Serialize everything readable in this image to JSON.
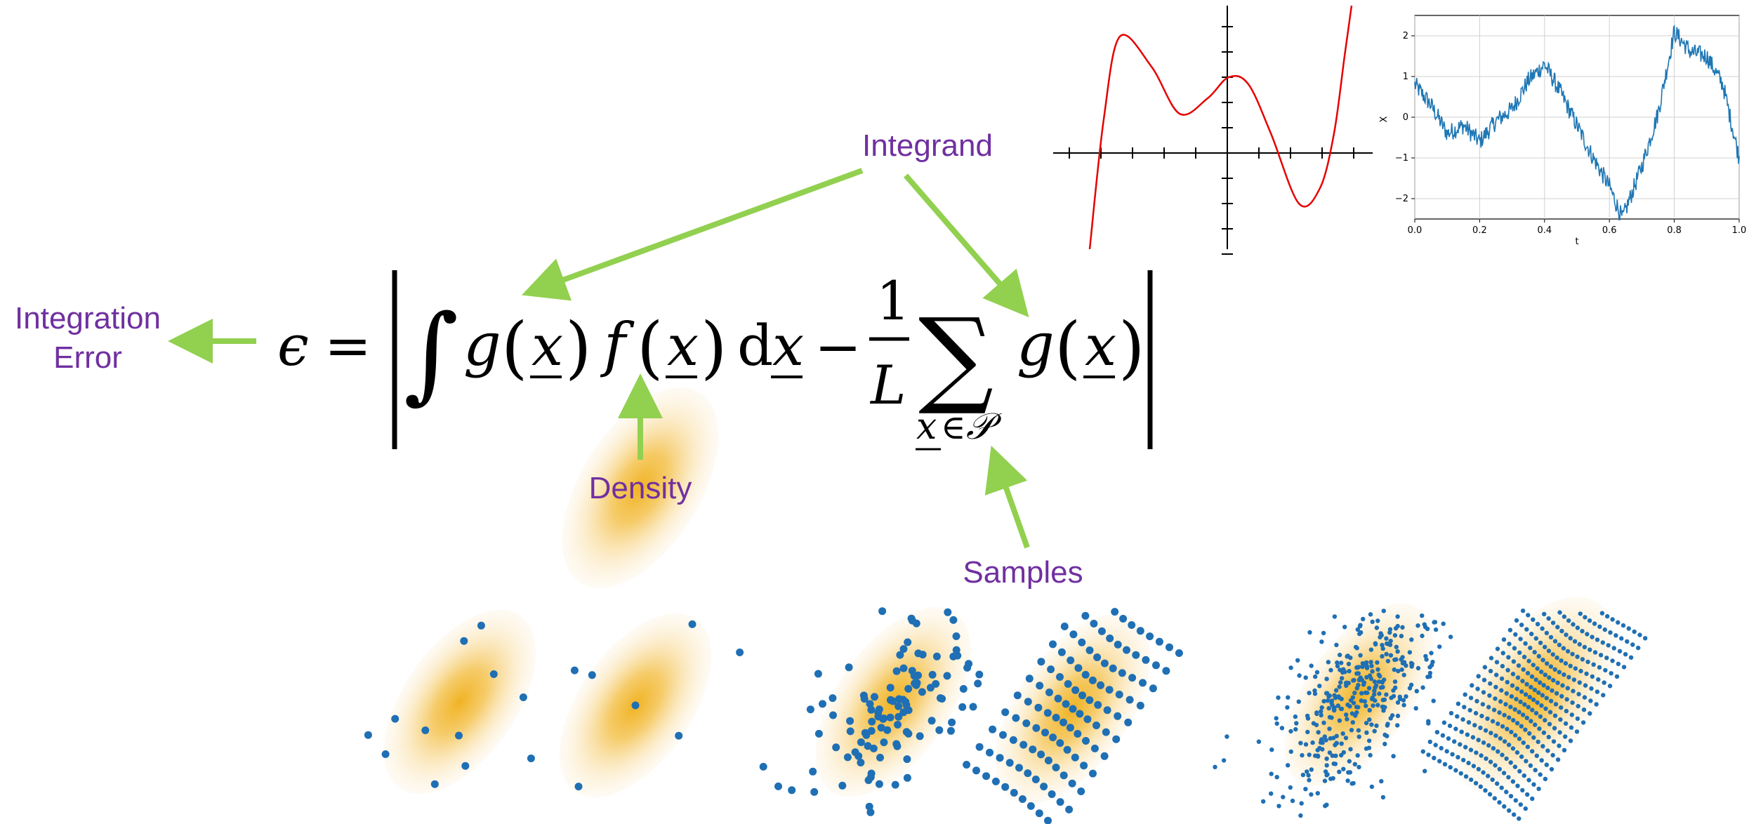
{
  "colors": {
    "label": "#7030A0",
    "arrow": "#92D050",
    "density": "#F0B323",
    "sample": "#1F6FB4",
    "curve": "#E60000",
    "walk": "#1F77B4"
  },
  "labels": {
    "integrand": "Integrand",
    "error_line1": "Integration",
    "error_line2": "Error",
    "density": "Density",
    "samples": "Samples"
  },
  "formula": {
    "epsilon": "ϵ",
    "equals": "=",
    "integral": "∫",
    "g": "g",
    "f": "f",
    "x": "x",
    "d": "d",
    "minus": "−",
    "one": "1",
    "L": "L",
    "sum": "∑",
    "subscript_x": "x",
    "subscript_in": "∈",
    "subscript_P": "𝒫",
    "lparen": "(",
    "rparen": ")"
  },
  "chart_data": [
    {
      "type": "line",
      "description_free": true,
      "xlim": [
        -5,
        3
      ],
      "ylim": [
        -3,
        5
      ],
      "x_tick_count": 11,
      "y_tick_count": 11,
      "polynomial_roots": [
        -4.1,
        1.4,
        2.5
      ],
      "series": [
        {
          "values_note": ""
        }
      ]
    },
    {
      "type": "line",
      "xlim": [
        0.0,
        1.0
      ],
      "ylim": [
        -2.5,
        2.5
      ],
      "xticks": [
        "0.0",
        "0.2",
        "0.4",
        "0.6",
        "0.8",
        "1.0"
      ],
      "yticks": [
        "2",
        "1",
        "0",
        "−1",
        "−2"
      ],
      "xlabel": "t",
      "ylabel": "X",
      "grid": true,
      "anchors": [
        [
          0.0,
          0.8
        ],
        [
          0.05,
          0.3
        ],
        [
          0.1,
          -0.4
        ],
        [
          0.15,
          -0.2
        ],
        [
          0.2,
          -0.6
        ],
        [
          0.25,
          -0.1
        ],
        [
          0.3,
          0.2
        ],
        [
          0.35,
          0.9
        ],
        [
          0.4,
          1.3
        ],
        [
          0.45,
          0.6
        ],
        [
          0.5,
          -0.2
        ],
        [
          0.55,
          -1.0
        ],
        [
          0.6,
          -1.7
        ],
        [
          0.64,
          -2.5
        ],
        [
          0.7,
          -1.2
        ],
        [
          0.75,
          0.1
        ],
        [
          0.8,
          2.1
        ],
        [
          0.85,
          1.6
        ],
        [
          0.9,
          1.5
        ],
        [
          0.95,
          0.8
        ],
        [
          1.0,
          -1.0
        ]
      ]
    }
  ]
}
